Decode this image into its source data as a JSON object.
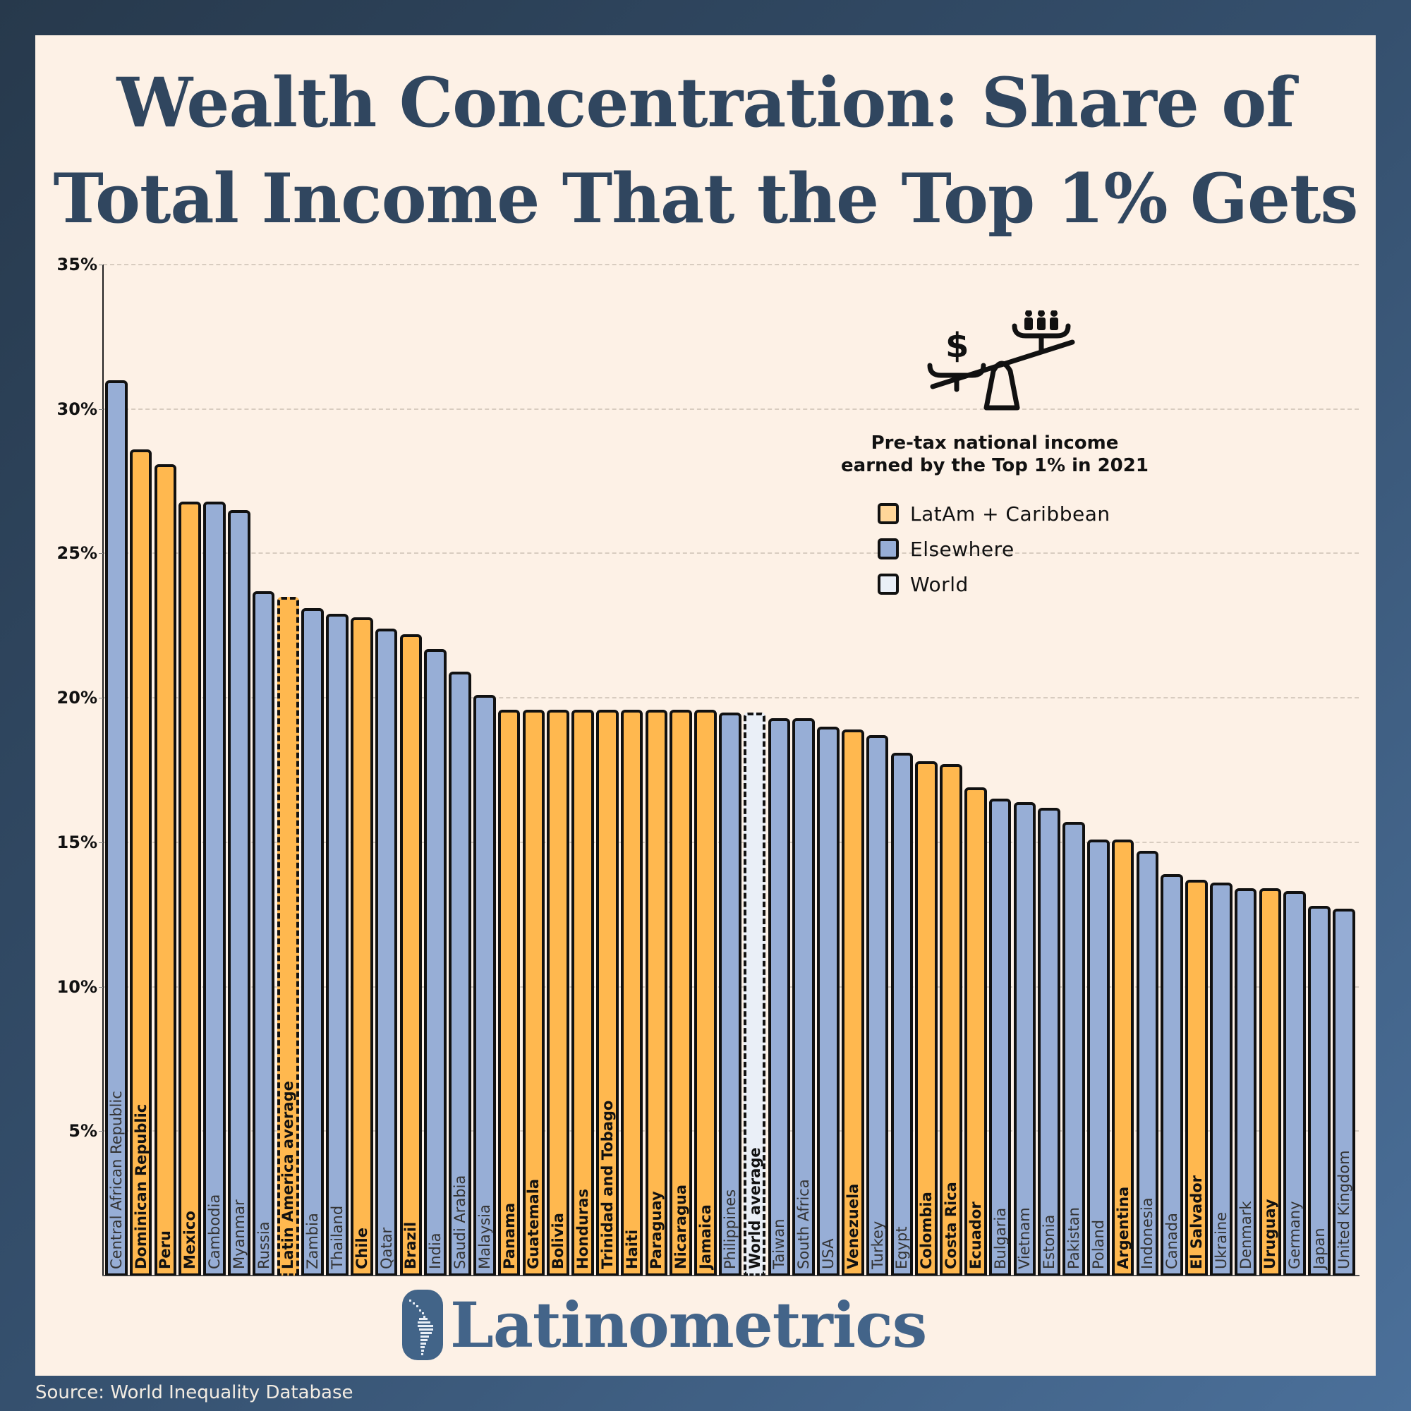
{
  "title": {
    "line1": "Wealth Concentration: Share of",
    "line2": "Total Income That the Top 1% Gets"
  },
  "legend": {
    "title_line1": "Pre-tax national income",
    "title_line2": "earned by the Top 1% in 2021",
    "items": [
      {
        "label": "LatAm + Caribbean",
        "color": "#ffd699"
      },
      {
        "label": "Elsewhere",
        "color": "#97aed6"
      },
      {
        "label": "World",
        "color": "#eaeff7"
      }
    ],
    "icon": "scale-money-vs-people-icon"
  },
  "colors": {
    "latam": "#ffb84f",
    "elsewhere": "#97aed6",
    "world": "#eaeff7",
    "title": "#30465f",
    "brand": "#436489",
    "panel": "#fdf1e6"
  },
  "brand": {
    "name": "Latinometrics"
  },
  "source": "Source: World Inequality Database",
  "chart_data": {
    "type": "bar",
    "title": "Wealth Concentration: Share of Total Income That the Top 1% Gets",
    "subtitle": "Pre-tax national income earned by the Top 1% in 2021",
    "xlabel": "",
    "ylabel": "",
    "ylim": [
      0,
      35
    ],
    "yticks": [
      "5%",
      "10%",
      "15%",
      "20%",
      "25%",
      "30%",
      "35%"
    ],
    "ytick_values": [
      5,
      10,
      15,
      20,
      25,
      30,
      35
    ],
    "grid": true,
    "legend_position": "upper right",
    "categories": [
      "Central African Republic",
      "Dominican Republic",
      "Peru",
      "Mexico",
      "Cambodia",
      "Myanmar",
      "Russia",
      "Latin America average",
      "Zambia",
      "Thailand",
      "Chile",
      "Qatar",
      "Brazil",
      "India",
      "Saudi Arabia",
      "Malaysia",
      "Panama",
      "Guatemala",
      "Bolivia",
      "Honduras",
      "Trinidad and Tobago",
      "Haiti",
      "Paraguay",
      "Nicaragua",
      "Jamaica",
      "Philippines",
      "World average",
      "Taiwan",
      "South Africa",
      "USA",
      "Venezuela",
      "Turkey",
      "Egypt",
      "Colombia",
      "Costa Rica",
      "Ecuador",
      "Bulgaria",
      "Vietnam",
      "Estonia",
      "Pakistan",
      "Poland",
      "Argentina",
      "Indonesia",
      "Canada",
      "El Salvador",
      "Ukraine",
      "Denmark",
      "Uruguay",
      "Germany",
      "Japan",
      "United Kingdom"
    ],
    "values": [
      31.0,
      28.6,
      28.1,
      26.8,
      26.8,
      26.5,
      23.7,
      23.5,
      23.1,
      22.9,
      22.8,
      22.4,
      22.2,
      21.7,
      20.9,
      20.1,
      19.6,
      19.6,
      19.6,
      19.6,
      19.6,
      19.6,
      19.6,
      19.6,
      19.6,
      19.5,
      19.5,
      19.3,
      19.3,
      19.0,
      18.9,
      18.7,
      18.1,
      17.8,
      17.7,
      16.9,
      16.5,
      16.4,
      16.2,
      15.7,
      15.1,
      15.1,
      14.7,
      13.9,
      13.7,
      13.6,
      13.4,
      13.4,
      13.3,
      12.8,
      12.7
    ],
    "groups": [
      "Elsewhere",
      "LatAm + Caribbean",
      "LatAm + Caribbean",
      "LatAm + Caribbean",
      "Elsewhere",
      "Elsewhere",
      "Elsewhere",
      "LatAm average",
      "Elsewhere",
      "Elsewhere",
      "LatAm + Caribbean",
      "Elsewhere",
      "LatAm + Caribbean",
      "Elsewhere",
      "Elsewhere",
      "Elsewhere",
      "LatAm + Caribbean",
      "LatAm + Caribbean",
      "LatAm + Caribbean",
      "LatAm + Caribbean",
      "LatAm + Caribbean",
      "LatAm + Caribbean",
      "LatAm + Caribbean",
      "LatAm + Caribbean",
      "LatAm + Caribbean",
      "Elsewhere",
      "World",
      "Elsewhere",
      "Elsewhere",
      "Elsewhere",
      "LatAm + Caribbean",
      "Elsewhere",
      "Elsewhere",
      "LatAm + Caribbean",
      "LatAm + Caribbean",
      "LatAm + Caribbean",
      "Elsewhere",
      "Elsewhere",
      "Elsewhere",
      "Elsewhere",
      "Elsewhere",
      "LatAm + Caribbean",
      "Elsewhere",
      "Elsewhere",
      "LatAm + Caribbean",
      "Elsewhere",
      "Elsewhere",
      "LatAm + Caribbean",
      "Elsewhere",
      "Elsewhere",
      "Elsewhere"
    ]
  }
}
